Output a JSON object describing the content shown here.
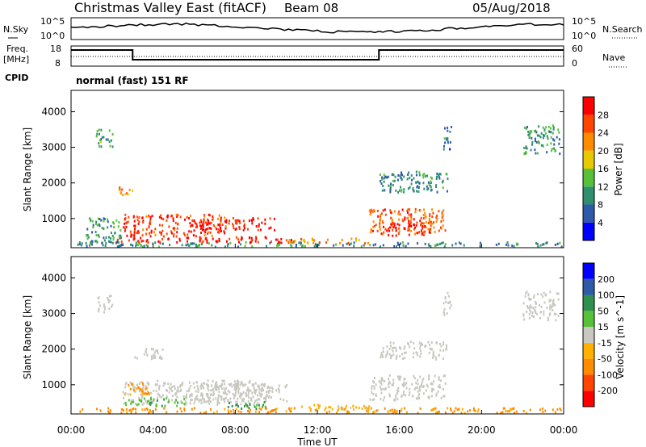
{
  "header": {
    "title": "Christmas Valley East (fitACF)",
    "beam": "Beam 08",
    "date": "05/Aug/2018"
  },
  "noise_panel": {
    "left_label": "N.Sky",
    "right_label": "N.Search",
    "left_ticks": [
      "10^5",
      "10^0"
    ],
    "right_ticks": [
      "10^5",
      "10^0"
    ]
  },
  "freq_panel": {
    "left_label_line1": "Freq.",
    "left_label_line2": "[MHz]",
    "right_label": "Nave",
    "left_ticks": [
      "18",
      "8"
    ],
    "right_ticks": [
      "60",
      "0"
    ]
  },
  "cpid_panel": {
    "label": "CPID",
    "text": "normal (fast) 151 RF"
  },
  "colors": {
    "power_scale": [
      "#0000ff",
      "#2f5aa8",
      "#2f8f6f",
      "#58c13a",
      "#e8c800",
      "#ff8c00",
      "#ff4500",
      "#ff0000"
    ],
    "velocity_scale": [
      "#ff0000",
      "#ff4500",
      "#ff8c00",
      "#ffb000",
      "#c8c8c0",
      "#58c13a",
      "#2f8f4f",
      "#2f5aa8",
      "#0000ff"
    ],
    "ground_scatter": "#c8c8c0"
  },
  "chart_data": [
    {
      "type": "heatmap",
      "name": "power",
      "ylabel": "Slant Range [km]",
      "y_ticks": [
        1000,
        2000,
        3000,
        4000
      ],
      "ylim": [
        180,
        4600
      ],
      "xlim_hours": [
        0,
        24
      ],
      "colorbar_label": "Power [dB]",
      "colorbar_ticks": [
        "4",
        "8",
        "12",
        "16",
        "20",
        "24",
        "28"
      ],
      "colorbar_range": [
        0,
        32
      ],
      "regions": [
        {
          "t0": 0.3,
          "t1": 23.9,
          "r0": 190,
          "r1": 320,
          "level": 10
        },
        {
          "t0": 2.2,
          "t1": 10.8,
          "r0": 300,
          "r1": 470,
          "level": 30
        },
        {
          "t0": 2.5,
          "t1": 7.6,
          "r0": 480,
          "r1": 1100,
          "level": 28
        },
        {
          "t0": 6.2,
          "t1": 9.9,
          "r0": 650,
          "r1": 1000,
          "level": 29
        },
        {
          "t0": 0.7,
          "t1": 2.4,
          "r0": 280,
          "r1": 1020,
          "level": 10
        },
        {
          "t0": 2.3,
          "t1": 3.0,
          "r0": 1650,
          "r1": 1950,
          "level": 21
        },
        {
          "t0": 1.2,
          "t1": 2.0,
          "r0": 3000,
          "r1": 3500,
          "level": 12
        },
        {
          "t0": 14.5,
          "t1": 18.2,
          "r0": 550,
          "r1": 1250,
          "level": 25
        },
        {
          "t0": 15.3,
          "t1": 17.5,
          "r0": 500,
          "r1": 900,
          "level": 29
        },
        {
          "t0": 15.0,
          "t1": 18.4,
          "r0": 1700,
          "r1": 2300,
          "level": 9
        },
        {
          "t0": 18.1,
          "t1": 18.5,
          "r0": 2900,
          "r1": 3600,
          "level": 8
        },
        {
          "t0": 22.0,
          "t1": 23.8,
          "r0": 2800,
          "r1": 3600,
          "level": 11
        },
        {
          "t0": 10.5,
          "t1": 14.5,
          "r0": 280,
          "r1": 420,
          "level": 22
        }
      ]
    },
    {
      "type": "heatmap",
      "name": "velocity",
      "ylabel": "Slant Range [km]",
      "xlabel": "Time UT",
      "x_ticks": [
        "00:00",
        "04:00",
        "08:00",
        "12:00",
        "16:00",
        "20:00",
        "00:00"
      ],
      "y_ticks": [
        1000,
        2000,
        3000,
        4000
      ],
      "ylim": [
        180,
        4600
      ],
      "xlim_hours": [
        0,
        24
      ],
      "colorbar_label": "Velocity [m s^-1]",
      "colorbar_ticks": [
        "-200",
        "-100",
        "-50",
        "-15",
        "15",
        "50",
        "100",
        "200"
      ],
      "regions": [
        {
          "t0": 0.3,
          "t1": 23.9,
          "r0": 190,
          "r1": 330,
          "vel": -60
        },
        {
          "t0": 2.5,
          "t1": 9.8,
          "r0": 420,
          "r1": 1100,
          "vel": 0
        },
        {
          "t0": 6.0,
          "t1": 10.5,
          "r0": 500,
          "r1": 1000,
          "vel": 0
        },
        {
          "t0": 2.6,
          "t1": 5.5,
          "r0": 380,
          "r1": 620,
          "vel": 40
        },
        {
          "t0": 7.5,
          "t1": 9.5,
          "r0": 300,
          "r1": 500,
          "vel": 60
        },
        {
          "t0": 2.5,
          "t1": 3.8,
          "r0": 700,
          "r1": 1050,
          "vel": -60
        },
        {
          "t0": 1.2,
          "t1": 2.0,
          "r0": 3000,
          "r1": 3500,
          "vel": 0
        },
        {
          "t0": 3.0,
          "t1": 4.5,
          "r0": 1700,
          "r1": 2000,
          "vel": 0
        },
        {
          "t0": 14.5,
          "t1": 18.2,
          "r0": 550,
          "r1": 1250,
          "vel": 0
        },
        {
          "t0": 15.0,
          "t1": 18.3,
          "r0": 1700,
          "r1": 2200,
          "vel": 0
        },
        {
          "t0": 18.1,
          "t1": 18.5,
          "r0": 2900,
          "r1": 3600,
          "vel": 0
        },
        {
          "t0": 22.0,
          "t1": 23.8,
          "r0": 2800,
          "r1": 3600,
          "vel": 0
        },
        {
          "t0": 10.5,
          "t1": 14.5,
          "r0": 280,
          "r1": 420,
          "vel": -30
        }
      ]
    }
  ]
}
